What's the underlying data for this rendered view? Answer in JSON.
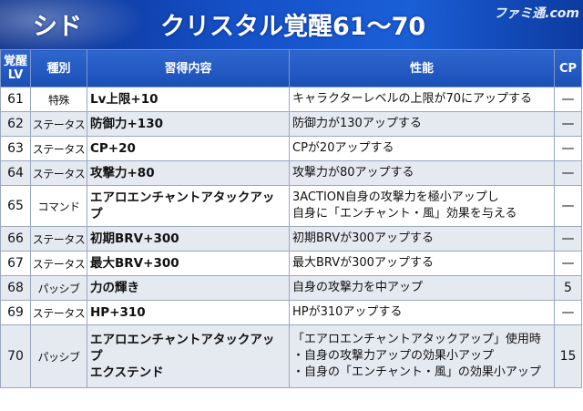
{
  "header": {
    "name": "シド",
    "title": "クリスタル覚醒61〜70",
    "logo": "ファミ通.com"
  },
  "columns": {
    "lv": [
      "覚醒",
      "LV"
    ],
    "kind": "種別",
    "skill": "習得内容",
    "perf": "性能",
    "cp": "CP"
  },
  "rows": [
    {
      "lv": "61",
      "kind": "特殊",
      "skill": [
        "Lv上限+10"
      ],
      "perf": [
        "キャラクターレベルの上限が70にアップする"
      ],
      "cp": "—"
    },
    {
      "lv": "62",
      "kind": "ステータス",
      "skill": [
        "防御力+130"
      ],
      "perf": [
        "防御力が130アップする"
      ],
      "cp": "—"
    },
    {
      "lv": "63",
      "kind": "ステータス",
      "skill": [
        "CP+20"
      ],
      "perf": [
        "CPが20アップする"
      ],
      "cp": "—"
    },
    {
      "lv": "64",
      "kind": "ステータス",
      "skill": [
        "攻撃力+80"
      ],
      "perf": [
        "攻撃力が80アップする"
      ],
      "cp": "—"
    },
    {
      "lv": "65",
      "kind": "コマンド",
      "skill": [
        "エアロエンチャントアタックアップ"
      ],
      "perf": [
        "3ACTION自身の攻撃力を極小アップし",
        "自身に「エンチャント・風」効果を与える"
      ],
      "cp": "—"
    },
    {
      "lv": "66",
      "kind": "ステータス",
      "skill": [
        "初期BRV+300"
      ],
      "perf": [
        "初期BRVが300アップする"
      ],
      "cp": "—"
    },
    {
      "lv": "67",
      "kind": "ステータス",
      "skill": [
        "最大BRV+300"
      ],
      "perf": [
        "最大BRVが300アップする"
      ],
      "cp": "—"
    },
    {
      "lv": "68",
      "kind": "パッシブ",
      "skill": [
        "力の輝き"
      ],
      "perf": [
        "自身の攻撃力を中アップ"
      ],
      "cp": "5"
    },
    {
      "lv": "69",
      "kind": "ステータス",
      "skill": [
        "HP+310"
      ],
      "perf": [
        "HPが310アップする"
      ],
      "cp": "—"
    },
    {
      "lv": "70",
      "kind": "パッシブ",
      "skill": [
        "エアロエンチャントアタックアップ",
        "エクステンド"
      ],
      "perf": [
        "「エアロエンチャントアタックアップ」使用時",
        "・自身の攻撃力アップの効果小アップ",
        "・自身の「エンチャント・風」の効果小アップ"
      ],
      "cp": "15"
    }
  ]
}
